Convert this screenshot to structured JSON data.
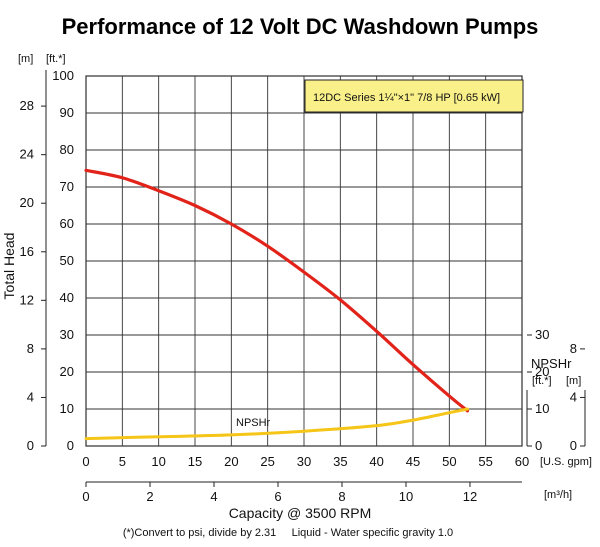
{
  "chart_data": {
    "type": "line",
    "title": "Performance of 12 Volt DC Washdown Pumps",
    "annotation_box": "12DC Series 1¼\"×1\" 7/8 HP [0.65 kW]",
    "ylabel": "Total Head",
    "y_units": [
      "[m]",
      "[ft.*]"
    ],
    "ylim": [
      0,
      100
    ],
    "yticks_ft": [
      "0",
      "10",
      "20",
      "30",
      "40",
      "50",
      "60",
      "70",
      "80",
      "90",
      "100"
    ],
    "yticks_m": [
      "0",
      "4",
      "8",
      "12",
      "16",
      "20",
      "24",
      "28"
    ],
    "xlim": [
      0,
      60
    ],
    "xticks_gpm": [
      "0",
      "5",
      "10",
      "15",
      "20",
      "25",
      "30",
      "35",
      "40",
      "45",
      "50",
      "55",
      "60"
    ],
    "x_units_gpm": "[U.S. gpm]",
    "xticks_m3h": [
      "0",
      "2",
      "4",
      "6",
      "8",
      "10",
      "12"
    ],
    "x_units_m3h": "[m³/h]",
    "xlabel": "Capacity @ 3500 RPM",
    "footnote": "(*)Convert to psi, divide by 2.31     Liquid - Water specific gravity 1.0",
    "npsh_axis": {
      "title": "NPSHr",
      "units_ft": "[ft.*]",
      "units_m": "[m]",
      "ticks_ft": [
        "0",
        "10",
        "20",
        "30"
      ],
      "ticks_m": [
        "0",
        "4",
        "8"
      ]
    },
    "grid": true,
    "series": [
      {
        "name": "",
        "color": "#e2231a",
        "x": [
          0,
          5,
          10,
          15,
          20,
          25,
          30,
          35,
          40,
          45,
          50,
          52.5
        ],
        "y": [
          74.5,
          72.5,
          69,
          65,
          60,
          54,
          47,
          39.5,
          31,
          22,
          13.5,
          9.5
        ]
      },
      {
        "name": "NPSHr",
        "color": "#f5c518",
        "x": [
          0,
          10,
          20,
          30,
          40,
          45,
          50,
          52.5
        ],
        "y_ft": [
          2,
          2.5,
          3,
          4,
          5.5,
          7,
          9,
          10
        ]
      }
    ]
  }
}
